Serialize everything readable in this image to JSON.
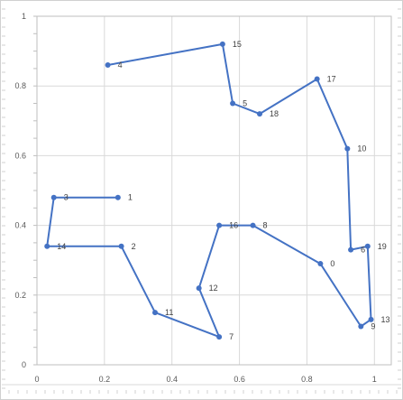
{
  "chart_data": {
    "type": "scatter",
    "title": "",
    "xlabel": "",
    "ylabel": "",
    "xlim": [
      0,
      1.05
    ],
    "ylim": [
      0,
      1.0
    ],
    "grid": true,
    "legend": "none",
    "line_color": "#4472C4",
    "x_ticks": [
      {
        "value": 0,
        "label": "0"
      },
      {
        "value": 0.2,
        "label": "0.2"
      },
      {
        "value": 0.4,
        "label": "0.4"
      },
      {
        "value": 0.6,
        "label": "0.6"
      },
      {
        "value": 0.8,
        "label": "0.8"
      },
      {
        "value": 1.0,
        "label": "1"
      }
    ],
    "y_ticks": [
      {
        "value": 0,
        "label": "0"
      },
      {
        "value": 0.2,
        "label": "0.2"
      },
      {
        "value": 0.4,
        "label": "0.4"
      },
      {
        "value": 0.6,
        "label": "0.6"
      },
      {
        "value": 0.8,
        "label": "0.8"
      },
      {
        "value": 1.0,
        "label": "1"
      }
    ],
    "points": [
      {
        "label": "4",
        "x": 0.21,
        "y": 0.86
      },
      {
        "label": "15",
        "x": 0.55,
        "y": 0.92
      },
      {
        "label": "5",
        "x": 0.58,
        "y": 0.75
      },
      {
        "label": "18",
        "x": 0.66,
        "y": 0.72
      },
      {
        "label": "17",
        "x": 0.83,
        "y": 0.82
      },
      {
        "label": "10",
        "x": 0.92,
        "y": 0.62
      },
      {
        "label": "6",
        "x": 0.93,
        "y": 0.33
      },
      {
        "label": "19",
        "x": 0.98,
        "y": 0.34
      },
      {
        "label": "13",
        "x": 0.99,
        "y": 0.13
      },
      {
        "label": "9",
        "x": 0.96,
        "y": 0.11
      },
      {
        "label": "0",
        "x": 0.84,
        "y": 0.29
      },
      {
        "label": "8",
        "x": 0.64,
        "y": 0.4
      },
      {
        "label": "16",
        "x": 0.54,
        "y": 0.4
      },
      {
        "label": "12",
        "x": 0.48,
        "y": 0.22
      },
      {
        "label": "7",
        "x": 0.54,
        "y": 0.08
      },
      {
        "label": "11",
        "x": 0.35,
        "y": 0.15
      },
      {
        "label": "2",
        "x": 0.25,
        "y": 0.34
      },
      {
        "label": "14",
        "x": 0.03,
        "y": 0.34
      },
      {
        "label": "3",
        "x": 0.05,
        "y": 0.48
      },
      {
        "label": "1",
        "x": 0.24,
        "y": 0.48
      }
    ]
  }
}
